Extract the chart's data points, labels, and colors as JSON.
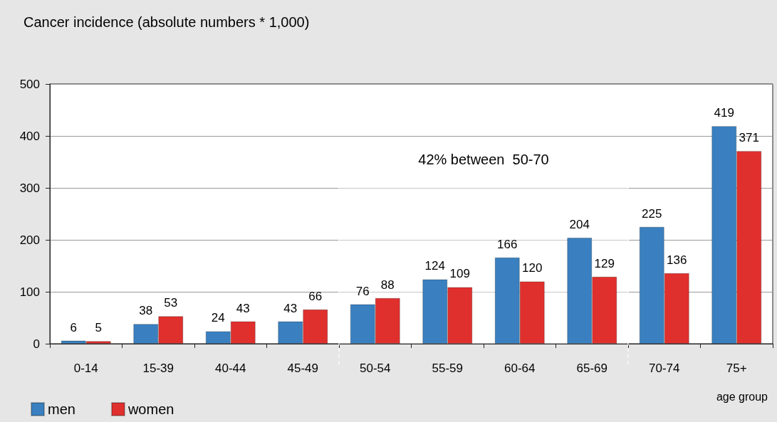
{
  "chart_data": {
    "type": "bar",
    "ylabel": "Cancer incidence (absolute numbers * 1,000)",
    "xlabel": "age group",
    "categories": [
      "0-14",
      "15-39",
      "40-44",
      "45-49",
      "50-54",
      "55-59",
      "60-64",
      "65-69",
      "70-74",
      "75+"
    ],
    "series": [
      {
        "name": "men",
        "color": "#3a80c0",
        "values": [
          6,
          38,
          24,
          43,
          76,
          124,
          166,
          204,
          225,
          419
        ]
      },
      {
        "name": "women",
        "color": "#e0302e",
        "values": [
          5,
          53,
          43,
          66,
          88,
          109,
          120,
          129,
          136,
          371
        ]
      }
    ],
    "ylim": [
      0,
      500
    ],
    "yticks": [
      0,
      100,
      200,
      300,
      400,
      500
    ],
    "grid": "y",
    "data_labels": true,
    "legend": "bottom left",
    "bands": [
      {
        "axis": "x",
        "from": "50-54",
        "to": "65-69",
        "label": "42% between  50-70",
        "color": "#ffffff"
      }
    ]
  }
}
